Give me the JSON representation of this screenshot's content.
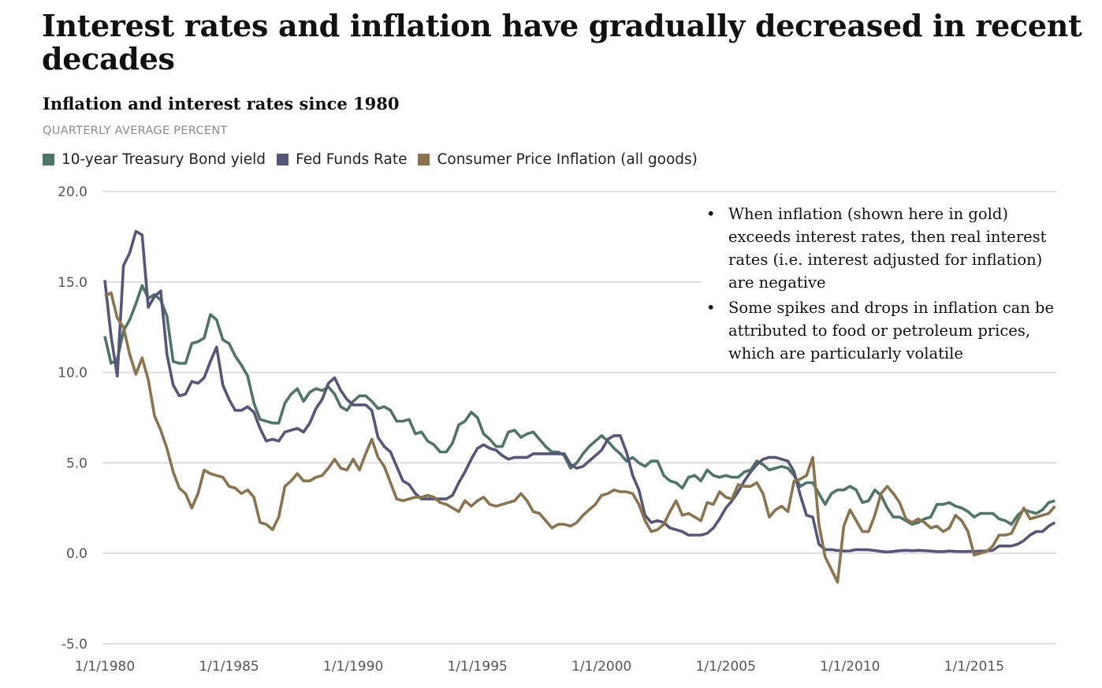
{
  "title": "Interest rates and inflation have gradually decreased in recent decades",
  "subtitle": "Inflation and interest rates since 1980",
  "unit_label": "QUARTERLY AVERAGE PERCENT",
  "notes": [
    "When inflation (shown here in gold) exceeds interest rates, then real interest rates (i.e. interest adjusted for inflation) are negative",
    "Some spikes and drops in inflation can be attributed to food or petroleum prices, which are particularly volatile"
  ],
  "chart_data": {
    "type": "line",
    "title": "Inflation and interest rates since 1980",
    "xlabel": "",
    "ylabel": "",
    "ylim": [
      -5,
      20
    ],
    "xlim": [
      1980,
      2018.25
    ],
    "grid": true,
    "legend_position": "top-left",
    "y_ticks": [
      "20.0",
      "15.0",
      "10.0",
      "5.0",
      "0.0",
      "-5.0"
    ],
    "y_tick_values": [
      20,
      15,
      10,
      5,
      0,
      -5
    ],
    "x_ticks": [
      "1/1/1980",
      "1/1/1985",
      "1/1/1990",
      "1/1/1995",
      "1/1/2000",
      "1/1/2005",
      "1/1/2010",
      "1/1/2015"
    ],
    "x_tick_values": [
      1980,
      1985,
      1990,
      1995,
      2000,
      2005,
      2010,
      2015
    ],
    "x_start": 1980,
    "x_step": 0.25,
    "series": [
      {
        "name": "10-year Treasury Bond yield",
        "color": "#4e7565",
        "values": [
          12.0,
          10.5,
          10.7,
          12.3,
          12.9,
          13.8,
          14.8,
          14.1,
          14.3,
          14.0,
          13.1,
          10.6,
          10.5,
          10.5,
          11.6,
          11.7,
          11.9,
          13.2,
          12.9,
          11.8,
          11.6,
          10.9,
          10.4,
          9.8,
          8.3,
          7.4,
          7.3,
          7.2,
          7.2,
          8.3,
          8.8,
          9.1,
          8.4,
          8.9,
          9.1,
          9.0,
          9.2,
          8.8,
          8.1,
          7.9,
          8.4,
          8.7,
          8.7,
          8.4,
          8.0,
          8.1,
          7.9,
          7.3,
          7.3,
          7.4,
          6.6,
          6.7,
          6.2,
          6.0,
          5.6,
          5.6,
          6.1,
          7.1,
          7.3,
          7.8,
          7.5,
          6.6,
          6.3,
          5.9,
          5.9,
          6.7,
          6.8,
          6.4,
          6.6,
          6.7,
          6.3,
          5.9,
          5.6,
          5.6,
          5.4,
          4.7,
          5.0,
          5.5,
          5.9,
          6.2,
          6.5,
          6.2,
          5.8,
          5.5,
          5.1,
          5.3,
          5.0,
          4.8,
          5.1,
          5.1,
          4.3,
          4.0,
          3.9,
          3.6,
          4.2,
          4.3,
          4.0,
          4.6,
          4.3,
          4.2,
          4.3,
          4.2,
          4.2,
          4.5,
          4.6,
          5.1,
          4.9,
          4.6,
          4.7,
          4.8,
          4.7,
          4.3,
          3.7,
          3.9,
          3.9,
          3.3,
          2.7,
          3.3,
          3.5,
          3.5,
          3.7,
          3.5,
          2.8,
          2.9,
          3.5,
          3.2,
          2.5,
          2.0,
          2.0,
          1.8,
          1.6,
          1.7,
          1.9,
          2.0,
          2.7,
          2.7,
          2.8,
          2.6,
          2.5,
          2.3,
          2.0,
          2.2,
          2.2,
          2.2,
          1.9,
          1.8,
          1.6,
          2.1,
          2.4,
          2.3,
          2.2,
          2.4,
          2.8,
          2.9
        ]
      },
      {
        "name": "Fed Funds Rate",
        "color": "#55567a",
        "values": [
          15.1,
          12.0,
          9.8,
          15.9,
          16.6,
          17.8,
          17.6,
          13.6,
          14.2,
          14.5,
          11.0,
          9.3,
          8.7,
          8.8,
          9.5,
          9.4,
          9.7,
          10.6,
          11.4,
          9.3,
          8.5,
          7.9,
          7.9,
          8.1,
          7.8,
          6.9,
          6.2,
          6.3,
          6.2,
          6.7,
          6.8,
          6.9,
          6.7,
          7.2,
          8.0,
          8.5,
          9.4,
          9.7,
          9.0,
          8.5,
          8.2,
          8.2,
          8.2,
          7.9,
          6.4,
          5.9,
          5.6,
          4.8,
          4.0,
          3.8,
          3.3,
          3.0,
          3.0,
          3.0,
          3.0,
          3.0,
          3.2,
          3.9,
          4.5,
          5.2,
          5.8,
          6.0,
          5.8,
          5.7,
          5.4,
          5.2,
          5.3,
          5.3,
          5.3,
          5.5,
          5.5,
          5.5,
          5.5,
          5.5,
          5.5,
          4.9,
          4.7,
          4.8,
          5.1,
          5.4,
          5.7,
          6.3,
          6.5,
          6.5,
          5.6,
          4.3,
          3.5,
          2.1,
          1.7,
          1.8,
          1.7,
          1.4,
          1.3,
          1.2,
          1.0,
          1.0,
          1.0,
          1.1,
          1.4,
          1.9,
          2.5,
          2.9,
          3.4,
          4.0,
          4.5,
          4.9,
          5.2,
          5.3,
          5.3,
          5.2,
          5.1,
          4.5,
          3.2,
          2.1,
          2.0,
          0.5,
          0.2,
          0.2,
          0.15,
          0.12,
          0.13,
          0.2,
          0.19,
          0.19,
          0.15,
          0.1,
          0.07,
          0.1,
          0.14,
          0.16,
          0.14,
          0.16,
          0.14,
          0.12,
          0.09,
          0.09,
          0.12,
          0.1,
          0.09,
          0.1,
          0.1,
          0.12,
          0.13,
          0.16,
          0.4,
          0.4,
          0.4,
          0.5,
          0.7,
          1.0,
          1.2,
          1.2,
          1.5,
          1.7
        ]
      },
      {
        "name": "Consumer Price Inflation (all goods)",
        "color": "#8b7350",
        "values": [
          14.2,
          14.4,
          13.0,
          12.5,
          11.0,
          9.9,
          10.8,
          9.6,
          7.6,
          6.8,
          5.8,
          4.5,
          3.6,
          3.3,
          2.5,
          3.3,
          4.6,
          4.4,
          4.3,
          4.2,
          3.7,
          3.6,
          3.3,
          3.5,
          3.1,
          1.7,
          1.6,
          1.3,
          2.0,
          3.7,
          4.0,
          4.4,
          4.0,
          4.0,
          4.2,
          4.3,
          4.7,
          5.2,
          4.7,
          4.6,
          5.2,
          4.6,
          5.5,
          6.3,
          5.3,
          4.8,
          3.9,
          3.0,
          2.9,
          3.0,
          3.1,
          3.1,
          3.2,
          3.1,
          2.8,
          2.7,
          2.5,
          2.3,
          2.9,
          2.6,
          2.9,
          3.1,
          2.7,
          2.6,
          2.7,
          2.8,
          2.9,
          3.3,
          2.9,
          2.3,
          2.2,
          1.8,
          1.4,
          1.6,
          1.6,
          1.5,
          1.7,
          2.1,
          2.4,
          2.7,
          3.2,
          3.3,
          3.5,
          3.4,
          3.4,
          3.3,
          2.7,
          1.8,
          1.2,
          1.3,
          1.6,
          2.3,
          2.9,
          2.1,
          2.2,
          2.0,
          1.8,
          2.8,
          2.7,
          3.4,
          3.1,
          3.0,
          3.8,
          3.7,
          3.7,
          3.9,
          3.3,
          2.0,
          2.4,
          2.6,
          2.3,
          4.0,
          4.1,
          4.3,
          5.3,
          1.6,
          -0.2,
          -0.9,
          -1.6,
          1.5,
          2.4,
          1.8,
          1.2,
          1.2,
          2.1,
          3.3,
          3.7,
          3.3,
          2.8,
          1.9,
          1.7,
          1.9,
          1.7,
          1.4,
          1.5,
          1.2,
          1.4,
          2.1,
          1.8,
          1.2,
          -0.1,
          0.0,
          0.1,
          0.4,
          1.0,
          1.0,
          1.1,
          1.8,
          2.5,
          1.9,
          2.0,
          2.1,
          2.2,
          2.6
        ]
      }
    ]
  }
}
